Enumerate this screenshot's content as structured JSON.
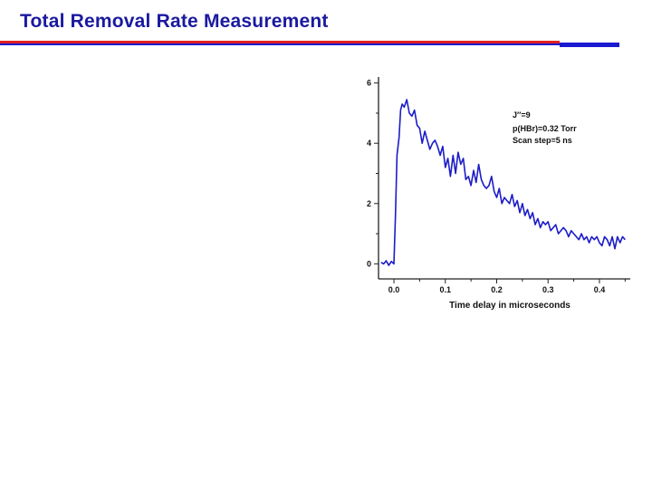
{
  "slide": {
    "title": "Total Removal Rate Measurement"
  },
  "chart_data": {
    "type": "line",
    "title": "",
    "xlabel": "Time delay in microseconds",
    "ylabel": "",
    "xlim": [
      -0.03,
      0.46
    ],
    "ylim": [
      -0.5,
      6.2
    ],
    "xticks": [
      "0.0",
      "0.1",
      "0.2",
      "0.3",
      "0.4"
    ],
    "yticks": [
      "0",
      "2",
      "4",
      "6"
    ],
    "annotations": [
      "J″=9",
      "p(HBr)=0.32 Torr",
      "Scan step=5 ns"
    ],
    "series_color": "#1c1cc8",
    "series": [
      {
        "x": [
          -0.025,
          -0.02,
          -0.015,
          -0.01,
          -0.005,
          0.0,
          0.003,
          0.006,
          0.01,
          0.013,
          0.016,
          0.02,
          0.025,
          0.03,
          0.035,
          0.04,
          0.045,
          0.05,
          0.055,
          0.06,
          0.065,
          0.07,
          0.075,
          0.08,
          0.085,
          0.09,
          0.095,
          0.1,
          0.105,
          0.11,
          0.115,
          0.12,
          0.125,
          0.13,
          0.135,
          0.14,
          0.145,
          0.15,
          0.155,
          0.16,
          0.165,
          0.17,
          0.175,
          0.18,
          0.185,
          0.19,
          0.195,
          0.2,
          0.205,
          0.21,
          0.215,
          0.22,
          0.225,
          0.23,
          0.235,
          0.24,
          0.245,
          0.25,
          0.255,
          0.26,
          0.265,
          0.27,
          0.275,
          0.28,
          0.285,
          0.29,
          0.295,
          0.3,
          0.305,
          0.31,
          0.315,
          0.32,
          0.325,
          0.33,
          0.335,
          0.34,
          0.345,
          0.35,
          0.355,
          0.36,
          0.365,
          0.37,
          0.375,
          0.38,
          0.385,
          0.39,
          0.395,
          0.4,
          0.405,
          0.41,
          0.415,
          0.42,
          0.425,
          0.43,
          0.435,
          0.44,
          0.445,
          0.45
        ],
        "y": [
          0.05,
          0.0,
          0.1,
          -0.05,
          0.08,
          0.0,
          1.6,
          3.6,
          4.2,
          5.1,
          5.3,
          5.2,
          5.45,
          5.0,
          4.9,
          5.1,
          4.6,
          4.5,
          4.0,
          4.4,
          4.1,
          3.8,
          4.0,
          4.1,
          3.9,
          3.6,
          3.9,
          3.2,
          3.5,
          2.9,
          3.6,
          3.0,
          3.7,
          3.3,
          3.5,
          2.8,
          2.9,
          2.6,
          3.1,
          2.7,
          3.3,
          2.8,
          2.6,
          2.5,
          2.6,
          2.9,
          2.4,
          2.2,
          2.5,
          2.0,
          2.2,
          2.1,
          2.0,
          2.3,
          1.9,
          2.1,
          1.7,
          2.0,
          1.6,
          1.8,
          1.5,
          1.7,
          1.3,
          1.5,
          1.2,
          1.4,
          1.3,
          1.4,
          1.1,
          1.2,
          1.3,
          1.0,
          1.1,
          1.2,
          1.1,
          0.9,
          1.1,
          1.0,
          0.9,
          0.8,
          1.0,
          0.8,
          0.9,
          0.7,
          0.9,
          0.8,
          0.9,
          0.7,
          0.6,
          0.9,
          0.8,
          0.6,
          0.9,
          0.5,
          0.9,
          0.7,
          0.9,
          0.8
        ]
      }
    ]
  }
}
